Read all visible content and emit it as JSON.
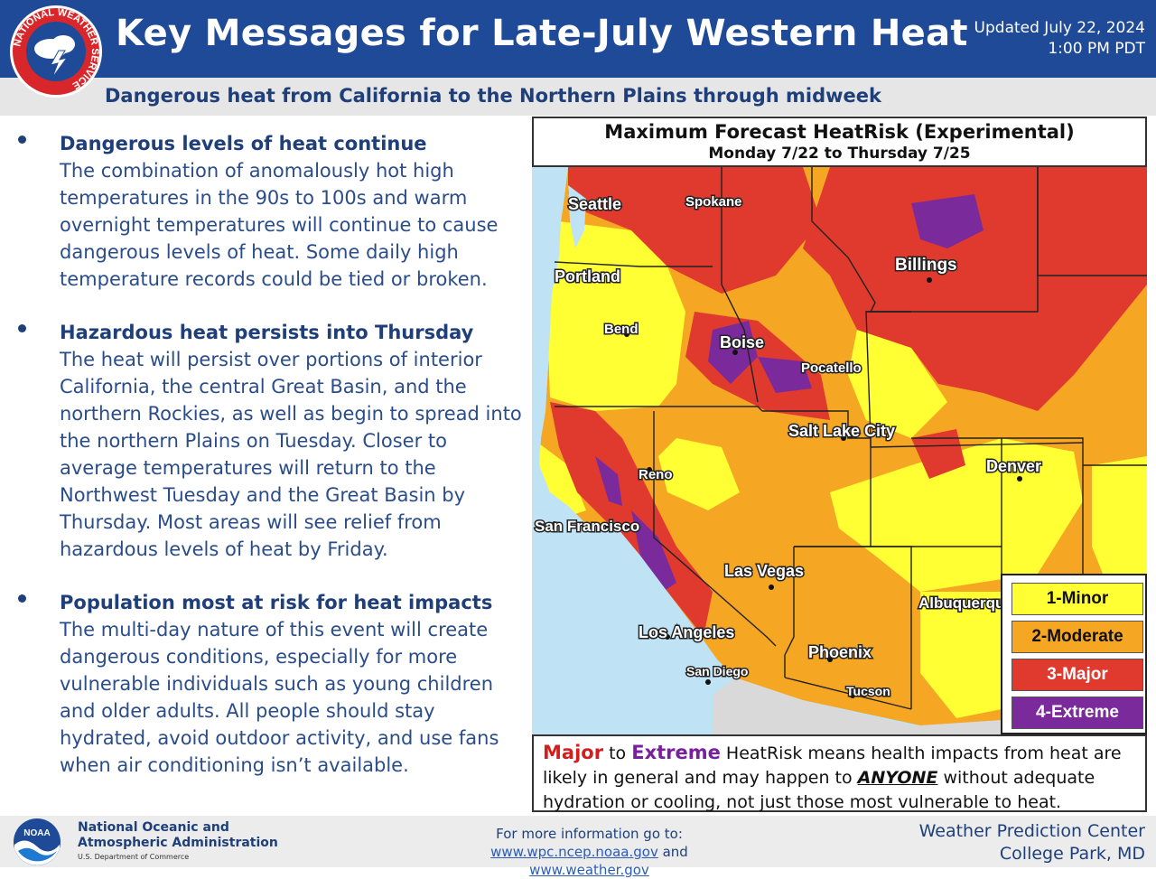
{
  "header": {
    "title": "Key Messages for Late-July Western Heat",
    "updated_line1": "Updated July 22, 2024",
    "updated_line2": "1:00 PM PDT",
    "subtitle": "Dangerous heat from California to the Northern Plains through midweek",
    "logo_text": "NATIONAL WEATHER SERVICE"
  },
  "bullets": [
    {
      "heading": "Dangerous levels of heat continue",
      "body": "The combination of anomalously hot high temperatures in the 90s to 100s and warm overnight temperatures will continue to cause dangerous levels of heat. Some daily high temperature records could be tied or broken."
    },
    {
      "heading": "Hazardous heat persists into Thursday",
      "body": "The heat will persist over portions of interior California, the central Great Basin, and the northern Rockies, as well as begin to spread into the northern Plains on Tuesday. Closer to average temperatures will return to the Northwest Tuesday and the Great Basin by Thursday. Most areas will see relief from hazardous levels of heat by Friday."
    },
    {
      "heading": "Population most at risk for heat impacts",
      "body": "The multi-day nature of this event will create dangerous conditions, especially for more vulnerable individuals such as young children and older adults. All people should stay hydrated, avoid outdoor activity, and use fans when air conditioning isn’t available."
    }
  ],
  "map": {
    "title": "Maximum Forecast HeatRisk (Experimental)",
    "subtitle": "Monday 7/22 to Thursday 7/25",
    "cities": [
      "Seattle",
      "Spokane",
      "Portland",
      "Billings",
      "Bend",
      "Boise",
      "Pocatello",
      "Salt Lake City",
      "Reno",
      "Denver",
      "San Francisco",
      "Las Vegas",
      "Albuquerque",
      "Los Angeles",
      "Phoenix",
      "San Diego",
      "Tucson"
    ],
    "legend": [
      {
        "label": "1-Minor",
        "color": "#ffff33",
        "text_color": "#111111"
      },
      {
        "label": "2-Moderate",
        "color": "#f5a623",
        "text_color": "#111111"
      },
      {
        "label": "3-Major",
        "color": "#e03a2e",
        "text_color": "#ffffff"
      },
      {
        "label": "4-Extreme",
        "color": "#7b2a9c",
        "text_color": "#ffffff"
      }
    ],
    "colors": {
      "water": "#bfe3f5",
      "mexico": "#d9d9d9"
    }
  },
  "note": {
    "major": "Major",
    "to": " to ",
    "extreme": "Extreme",
    "text1": " HeatRisk means health impacts from heat are likely in general and may happen to ",
    "anyone": "ANYONE",
    "text2": " without adequate hydration or cooling, not just those most vulnerable to heat."
  },
  "footer": {
    "noaa_line1": "National Oceanic and",
    "noaa_line2": "Atmospheric Administration",
    "noaa_dept": "U.S. Department of Commerce",
    "noaa_logo_text": "NOAA",
    "more_info": "For more information go to:",
    "link1": "www.wpc.ncep.noaa.gov",
    "and": " and ",
    "link2": "www.weather.gov",
    "wpc_line1": "Weather Prediction Center",
    "wpc_line2": "College Park, MD"
  }
}
